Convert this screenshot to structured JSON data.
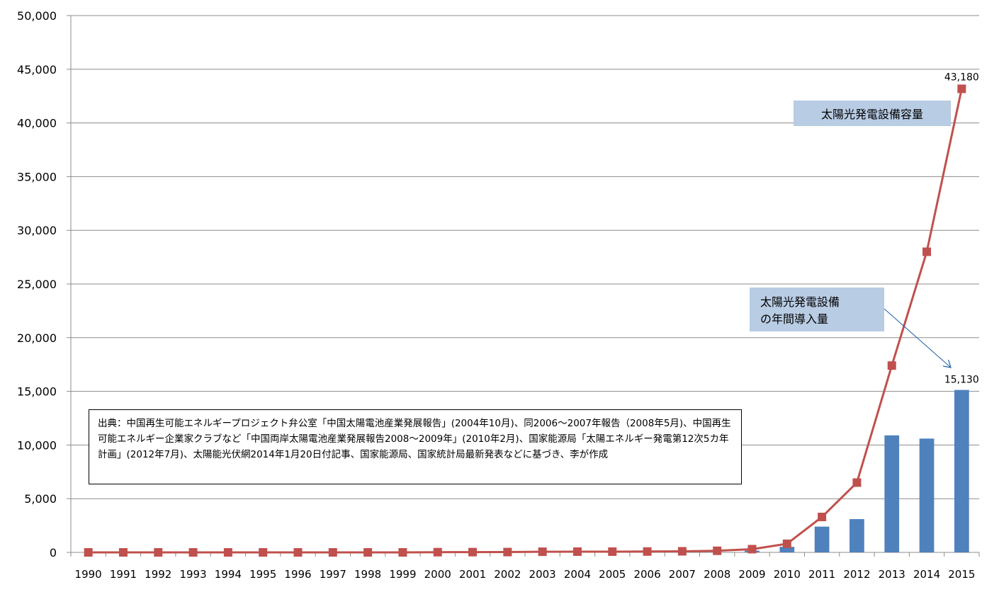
{
  "chart_data": {
    "type": "bar",
    "categories": [
      "1990",
      "1991",
      "1992",
      "1993",
      "1994",
      "1995",
      "1996",
      "1997",
      "1998",
      "1999",
      "2000",
      "2001",
      "2002",
      "2003",
      "2004",
      "2005",
      "2006",
      "2007",
      "2008",
      "2009",
      "2010",
      "2011",
      "2012",
      "2013",
      "2014",
      "2015"
    ],
    "series": [
      {
        "type": "bar",
        "color": "#4F81BD",
        "values": [
          0,
          0,
          0,
          0,
          0,
          0,
          0,
          0,
          0,
          0,
          0,
          0,
          0,
          0,
          0,
          0,
          0,
          0,
          20,
          160,
          520,
          2400,
          3100,
          10900,
          10600,
          15130
        ]
      },
      {
        "type": "line",
        "color": "#C0504D",
        "values": [
          0,
          0,
          0,
          0,
          0,
          0,
          0,
          0,
          0,
          0,
          20,
          25,
          30,
          60,
          70,
          70,
          80,
          100,
          150,
          300,
          800,
          3300,
          6500,
          17400,
          28000,
          43180
        ]
      }
    ],
    "ylim": [
      0,
      50000
    ],
    "yticks": [
      0,
      5000,
      10000,
      15000,
      20000,
      25000,
      30000,
      35000,
      40000,
      45000,
      50000
    ],
    "ytick_labels": [
      "0",
      "5,000",
      "10,000",
      "15,000",
      "20,000",
      "25,000",
      "30,000",
      "35,000",
      "40,000",
      "45,000",
      "50,000"
    ],
    "grid": true,
    "data_labels": [
      {
        "series": 1,
        "index": 25,
        "text": "43,180"
      },
      {
        "series": 0,
        "index": 25,
        "text": "15,130"
      }
    ],
    "callouts": {
      "cumulative": {
        "text": "太陽光発電設備容量",
        "fill": "#B8CCE4"
      },
      "annual": {
        "lines": [
          "太陽光発電設備",
          "の年間導入量"
        ],
        "fill": "#B8CCE4"
      }
    }
  },
  "source_note": "出典：中国再生可能エネルギープロジェクト弁公室「中国太陽電池産業発展報告」(2004年10月)、同2006～2007年報告（2008年5月)、中国再生可能エネルギー企業家クラブなど「中国両岸太陽電池産業発展報告2008～2009年」(2010年2月)、国家能源局「太陽エネルギー発電第12次5カ年計画」(2012年7月)、太陽能光伏網2014年1月20日付記事、国家能源局、国家統計局最新発表などに基づき、李が作成"
}
